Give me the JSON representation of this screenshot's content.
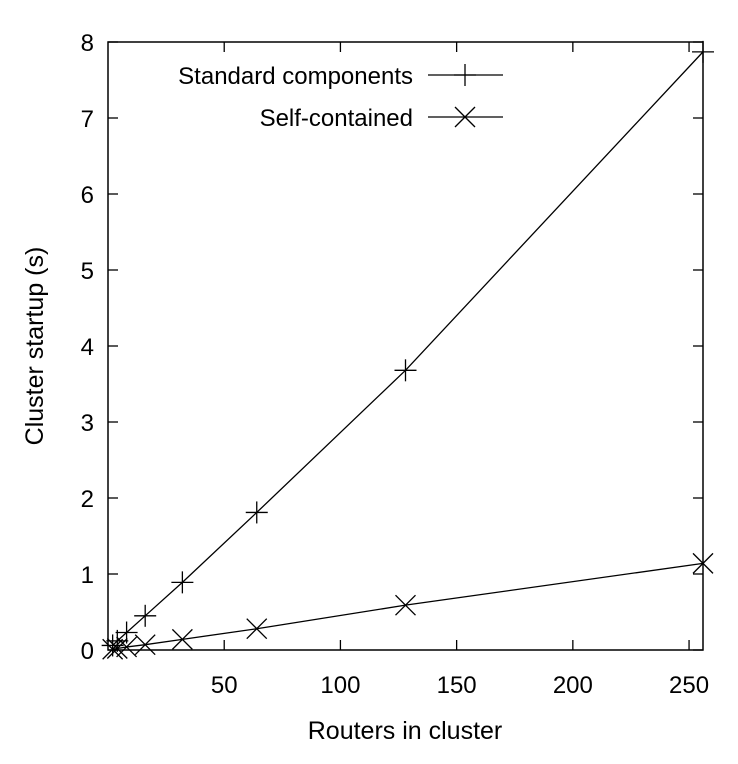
{
  "chart_data": {
    "type": "line",
    "title": "",
    "xlabel": "Routers in cluster",
    "ylabel": "Cluster startup (s)",
    "xlim": [
      0,
      256
    ],
    "ylim": [
      0,
      8
    ],
    "xticks": [
      50,
      100,
      150,
      200,
      250
    ],
    "yticks": [
      0,
      1,
      2,
      3,
      4,
      5,
      6,
      7,
      8
    ],
    "grid": false,
    "legend_position": "top-left",
    "series": [
      {
        "name": "Standard components",
        "marker": "plus",
        "color": "#000000",
        "x": [
          2,
          4,
          8,
          16,
          32,
          64,
          128,
          256
        ],
        "y": [
          0.06,
          0.12,
          0.23,
          0.45,
          0.89,
          1.81,
          3.68,
          7.87
        ]
      },
      {
        "name": "Self-contained",
        "marker": "cross",
        "color": "#000000",
        "x": [
          2,
          4,
          8,
          16,
          32,
          64,
          128,
          256
        ],
        "y": [
          0.01,
          0.02,
          0.04,
          0.07,
          0.14,
          0.28,
          0.59,
          1.14
        ]
      }
    ]
  }
}
